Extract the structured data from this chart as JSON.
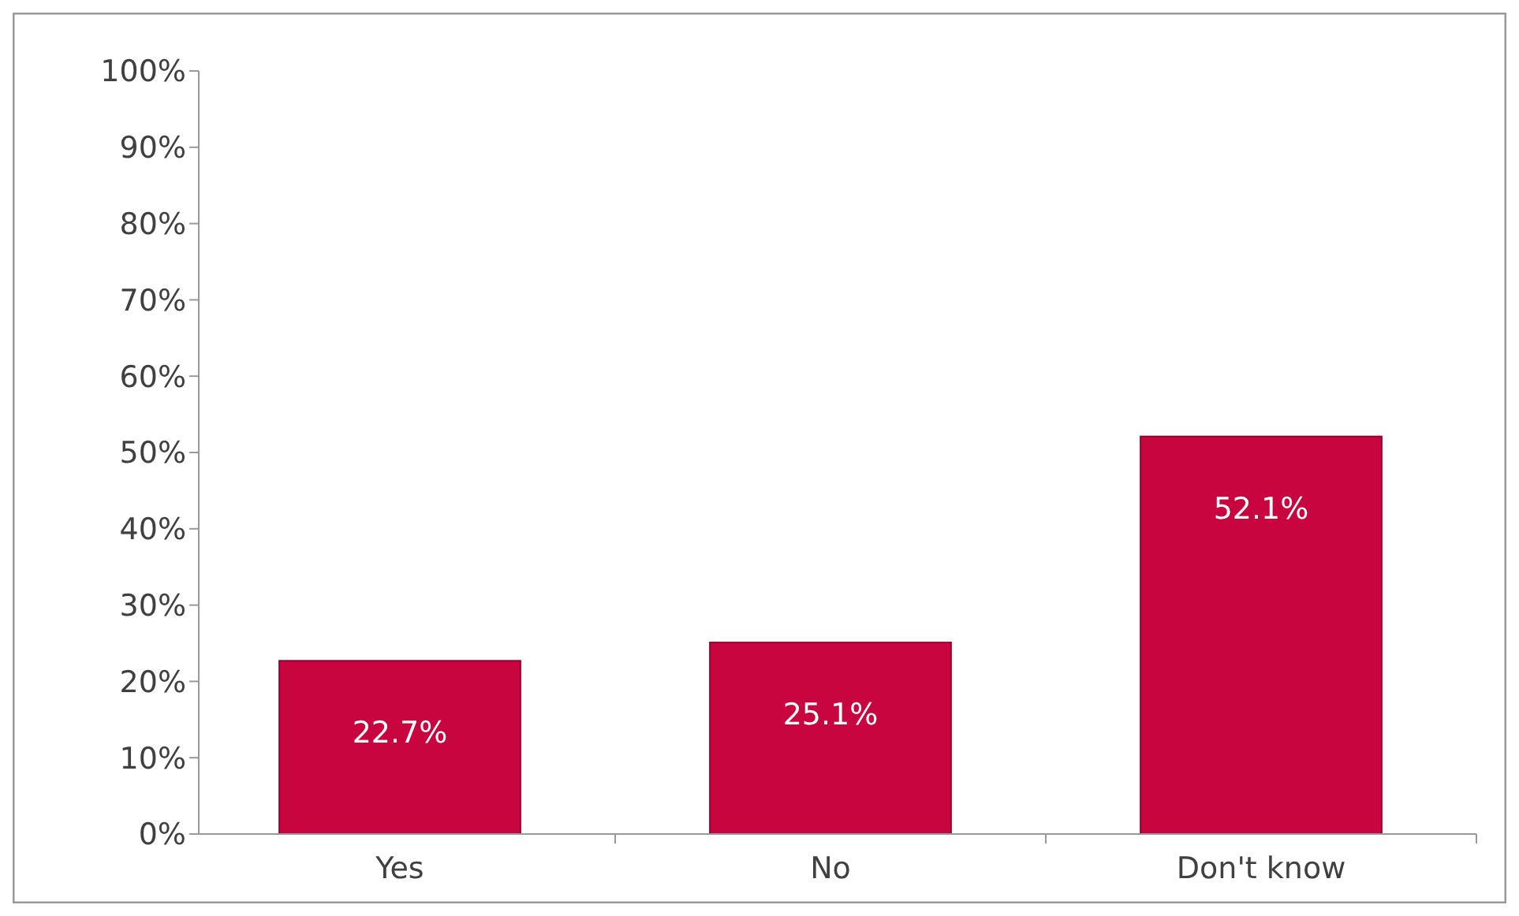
{
  "chart_data": {
    "type": "bar",
    "categories": [
      "Yes",
      "No",
      "Don't know"
    ],
    "values": [
      22.7,
      25.1,
      52.1
    ],
    "color": "#c8053f",
    "value_labels": [
      "22.7%",
      "25.1%",
      "52.1%"
    ],
    "ylim": [
      0,
      100
    ],
    "yticks": [
      {
        "value": 0,
        "label": "0%"
      },
      {
        "value": 10,
        "label": "10%"
      },
      {
        "value": 20,
        "label": "20%"
      },
      {
        "value": 30,
        "label": "30%"
      },
      {
        "value": 40,
        "label": "40%"
      },
      {
        "value": 50,
        "label": "50%"
      },
      {
        "value": 60,
        "label": "60%"
      },
      {
        "value": 70,
        "label": "70%"
      },
      {
        "value": 80,
        "label": "80%"
      },
      {
        "value": 90,
        "label": "90%"
      },
      {
        "value": 100,
        "label": "100%"
      }
    ],
    "grid": false
  }
}
